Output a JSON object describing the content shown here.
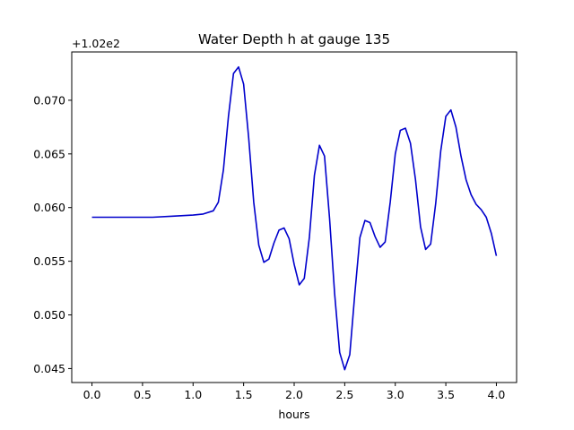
{
  "chart_data": {
    "type": "line",
    "title": "Water Depth h at gauge 135",
    "xlabel": "hours",
    "ylabel": "",
    "y_offset_label": "+1.02e2",
    "xlim": [
      -0.2,
      4.2
    ],
    "ylim": [
      0.0437,
      0.0745
    ],
    "x_ticks": [
      0.0,
      0.5,
      1.0,
      1.5,
      2.0,
      2.5,
      3.0,
      3.5,
      4.0
    ],
    "x_tick_labels": [
      "0.0",
      "0.5",
      "1.0",
      "1.5",
      "2.0",
      "2.5",
      "3.0",
      "3.5",
      "4.0"
    ],
    "y_ticks": [
      0.045,
      0.05,
      0.055,
      0.06,
      0.065,
      0.07
    ],
    "y_tick_labels": [
      "0.045",
      "0.050",
      "0.055",
      "0.060",
      "0.065",
      "0.070"
    ],
    "grid": false,
    "series": [
      {
        "color": "#0000cc",
        "x": [
          0.0,
          0.2,
          0.4,
          0.6,
          0.8,
          1.0,
          1.1,
          1.2,
          1.25,
          1.3,
          1.35,
          1.4,
          1.45,
          1.5,
          1.55,
          1.6,
          1.65,
          1.7,
          1.75,
          1.8,
          1.85,
          1.9,
          1.95,
          2.0,
          2.05,
          2.1,
          2.15,
          2.2,
          2.25,
          2.3,
          2.35,
          2.4,
          2.45,
          2.5,
          2.55,
          2.6,
          2.65,
          2.7,
          2.75,
          2.8,
          2.85,
          2.9,
          2.95,
          3.0,
          3.05,
          3.1,
          3.15,
          3.2,
          3.25,
          3.3,
          3.35,
          3.4,
          3.45,
          3.5,
          3.55,
          3.6,
          3.65,
          3.7,
          3.75,
          3.8,
          3.85,
          3.9,
          3.95,
          4.0
        ],
        "y": [
          0.0591,
          0.0591,
          0.0591,
          0.0591,
          0.0592,
          0.0593,
          0.0594,
          0.0597,
          0.0605,
          0.0635,
          0.0685,
          0.0725,
          0.0731,
          0.0715,
          0.0665,
          0.0605,
          0.0565,
          0.0549,
          0.0552,
          0.0567,
          0.0579,
          0.0581,
          0.0571,
          0.0547,
          0.0528,
          0.0534,
          0.0572,
          0.063,
          0.0658,
          0.0648,
          0.059,
          0.052,
          0.0465,
          0.0449,
          0.0463,
          0.052,
          0.0572,
          0.0588,
          0.0586,
          0.0573,
          0.0563,
          0.0568,
          0.0605,
          0.065,
          0.0672,
          0.0674,
          0.066,
          0.0626,
          0.0582,
          0.0561,
          0.0566,
          0.0604,
          0.0653,
          0.0685,
          0.0691,
          0.0675,
          0.0648,
          0.0626,
          0.0612,
          0.0603,
          0.0598,
          0.0591,
          0.0576,
          0.0555
        ]
      }
    ]
  }
}
